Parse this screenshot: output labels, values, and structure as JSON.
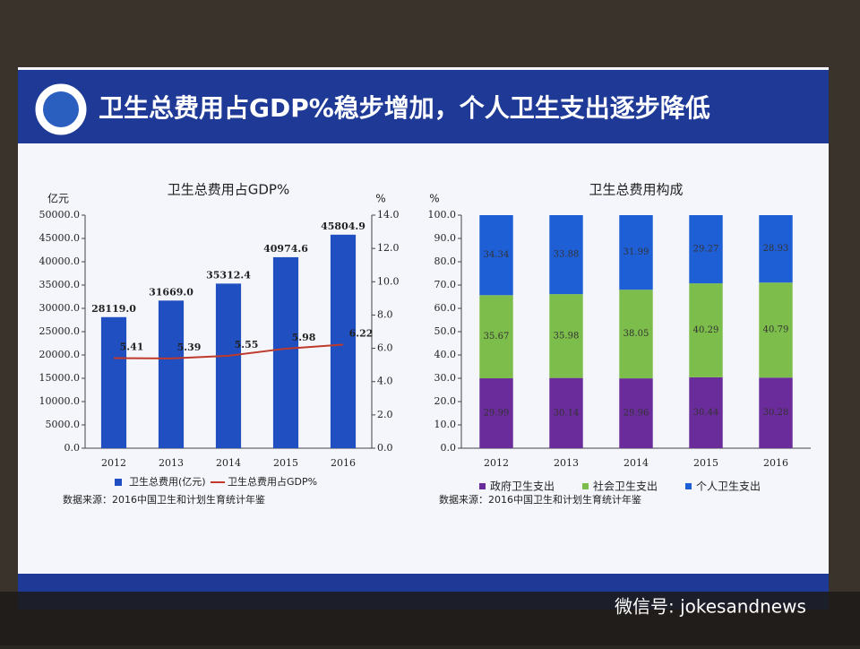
{
  "slide": {
    "title": "卫生总费用占GDP%稳步增加，个人卫生支出逐步降低",
    "watermark": "微信号: jokesandnews"
  },
  "chart_data": [
    {
      "type": "bar_line",
      "title": "卫生总费用占GDP%",
      "y_label": "亿元",
      "y2_label": "%",
      "categories": [
        "2012",
        "2013",
        "2014",
        "2015",
        "2016"
      ],
      "series": [
        {
          "name": "卫生总费用(亿元)",
          "color": "#1f4fc0",
          "values": [
            28119,
            31669,
            35312.4,
            40974.6,
            45804.9
          ],
          "value_labels": [
            "28119.0",
            "31669.0",
            "35312.4",
            "40974.6",
            "45804.9"
          ]
        },
        {
          "name": "卫生总费用占GDP%",
          "color": "#c0392b",
          "axis": "y2",
          "values": [
            5.41,
            5.39,
            5.55,
            5.98,
            6.22
          ]
        }
      ],
      "ylim": [
        0,
        50000
      ],
      "yticks": [
        {
          "value": 0,
          "label": "0.0"
        },
        {
          "value": 5000,
          "label": "5000.0"
        },
        {
          "value": 10000,
          "label": "10000.0"
        },
        {
          "value": 15000,
          "label": "15000.0"
        },
        {
          "value": 20000,
          "label": "20000.0"
        },
        {
          "value": 25000,
          "label": "25000.0"
        },
        {
          "value": 30000,
          "label": "30000.0"
        },
        {
          "value": 35000,
          "label": "35000.0"
        },
        {
          "value": 40000,
          "label": "40000.0"
        },
        {
          "value": 45000,
          "label": "45000.0"
        },
        {
          "value": 50000,
          "label": "50000.0"
        }
      ],
      "y2lim": [
        0,
        14
      ],
      "y2ticks": [
        {
          "value": 0,
          "label": "0.0"
        },
        {
          "value": 2,
          "label": "2.0"
        },
        {
          "value": 4,
          "label": "4.0"
        },
        {
          "value": 6,
          "label": "6.0"
        },
        {
          "value": 8,
          "label": "8.0"
        },
        {
          "value": 10,
          "label": "10.0"
        },
        {
          "value": 12,
          "label": "12.0"
        },
        {
          "value": 14,
          "label": "14.0"
        }
      ],
      "source": "数据来源：2016中国卫生和计划生育统计年鉴"
    },
    {
      "type": "stacked_bar",
      "title": "卫生总费用构成",
      "y_label": "%",
      "categories": [
        "2012",
        "2013",
        "2014",
        "2015",
        "2016"
      ],
      "series": [
        {
          "name": "政府卫生支出",
          "color": "#6a2c9a",
          "values": [
            29.99,
            30.14,
            29.96,
            30.44,
            30.28
          ]
        },
        {
          "name": "社会卫生支出",
          "color": "#7dbd4b",
          "values": [
            35.67,
            35.98,
            38.05,
            40.29,
            40.79
          ]
        },
        {
          "name": "个人卫生支出",
          "color": "#1f5fd6",
          "values": [
            34.34,
            33.88,
            31.99,
            29.27,
            28.93
          ]
        }
      ],
      "ylim": [
        0,
        100
      ],
      "yticks": [
        {
          "value": 0,
          "label": "0.0"
        },
        {
          "value": 10,
          "label": "10.0"
        },
        {
          "value": 20,
          "label": "20.0"
        },
        {
          "value": 30,
          "label": "30.0"
        },
        {
          "value": 40,
          "label": "40.0"
        },
        {
          "value": 50,
          "label": "50.0"
        },
        {
          "value": 60,
          "label": "60.0"
        },
        {
          "value": 70,
          "label": "70.0"
        },
        {
          "value": 80,
          "label": "80.0"
        },
        {
          "value": 90,
          "label": "90.0"
        },
        {
          "value": 100,
          "label": "100.0"
        }
      ],
      "source": "数据来源：2016中国卫生和计划生育统计年鉴"
    }
  ]
}
